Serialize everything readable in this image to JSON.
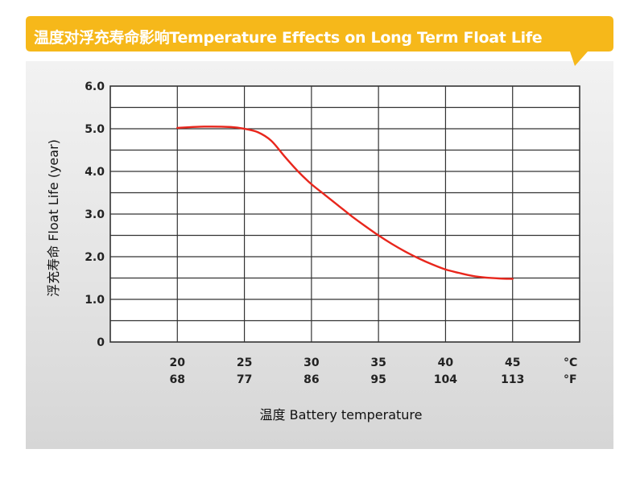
{
  "banner": {
    "title": "温度对浮充寿命影响Temperature Effects on Long Term Float Life",
    "color": "#f6b81a"
  },
  "chart_data": {
    "type": "line",
    "title": "温度对浮充寿命影响Temperature Effects on Long Term Float Life",
    "xlabel": "温度 Battery temperature",
    "ylabel": "浮充寿命 Float Life (year)",
    "x_unit_primary": "°C",
    "x_unit_secondary": "°F",
    "x_ticks_celsius": [
      "20",
      "25",
      "30",
      "35",
      "40",
      "45"
    ],
    "x_ticks_fahrenheit": [
      "68",
      "77",
      "86",
      "95",
      "104",
      "113"
    ],
    "y_ticks": [
      "0",
      "1.0",
      "2.0",
      "3.0",
      "4.0",
      "5.0",
      "6.0"
    ],
    "xlim": [
      15,
      50
    ],
    "ylim": [
      0,
      6
    ],
    "grid": true,
    "series": [
      {
        "color": "#e8261c",
        "x": [
          20,
          22,
          24,
          25,
          26,
          27,
          28,
          29,
          30,
          31,
          32,
          33,
          34,
          35,
          36,
          37,
          38,
          39,
          40,
          41,
          42,
          43,
          44,
          45
        ],
        "y": [
          5.02,
          5.05,
          5.04,
          5.0,
          4.92,
          4.72,
          4.35,
          4.0,
          3.7,
          3.45,
          3.2,
          2.95,
          2.72,
          2.5,
          2.3,
          2.12,
          1.96,
          1.82,
          1.7,
          1.62,
          1.55,
          1.51,
          1.49,
          1.48
        ]
      }
    ]
  }
}
